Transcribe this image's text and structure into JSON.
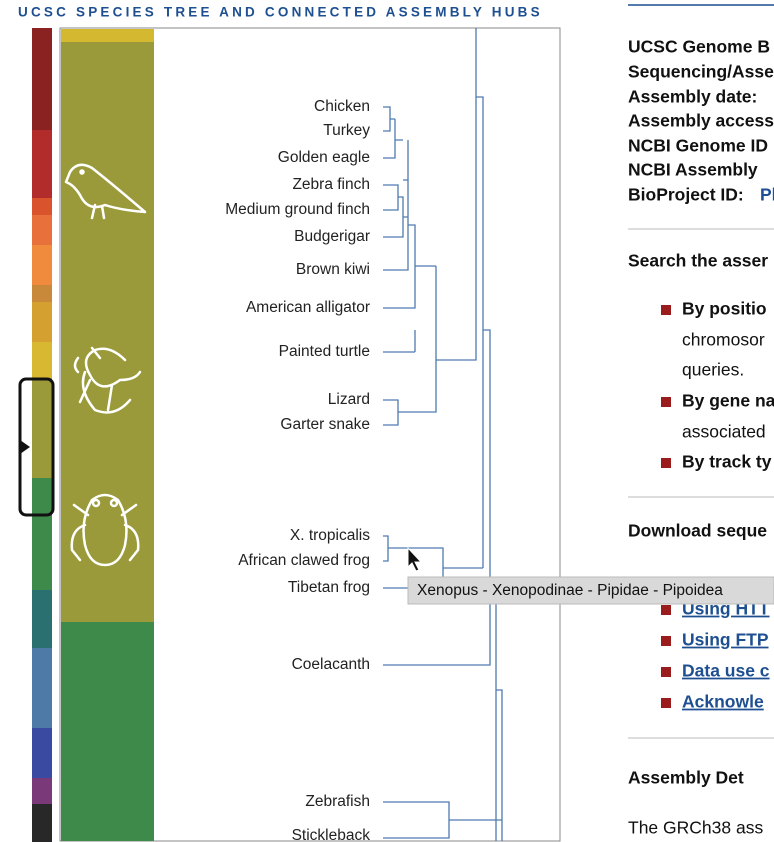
{
  "header": {
    "title": "UCSC SPECIES TREE AND CONNECTED ASSEMBLY HUBS"
  },
  "tree": {
    "species": [
      "Chicken",
      "Turkey",
      "Golden eagle",
      "Zebra finch",
      "Medium ground finch",
      "Budgerigar",
      "Brown kiwi",
      "American alligator",
      "Painted turtle",
      "Lizard",
      "Garter snake",
      "X. tropicalis",
      "African clawed frog",
      "Tibetan frog",
      "Coelacanth",
      "Zebrafish",
      "Stickleback"
    ],
    "tooltip": "Xenopus - Xenopodinae - Pipidae - Pipoidea"
  },
  "details": {
    "info": [
      "UCSC Genome B",
      "Sequencing/Asse",
      "Assembly date:",
      "Assembly access",
      "NCBI Genome ID",
      "NCBI Assembly",
      "BioProject ID:"
    ],
    "bioproject_link": "Pl",
    "search": {
      "heading": "Search the asser",
      "items": [
        [
          "By positio",
          "chromosor",
          "queries."
        ],
        [
          "By gene na",
          "associated"
        ],
        [
          "By track ty"
        ]
      ]
    },
    "download": {
      "heading": "Download seque",
      "links": [
        "Using HTT",
        "Using FTP",
        "Data use c",
        "Acknowle"
      ]
    },
    "assembly": {
      "heading": "Assembly Det",
      "text": "The GRCh38 ass"
    }
  }
}
